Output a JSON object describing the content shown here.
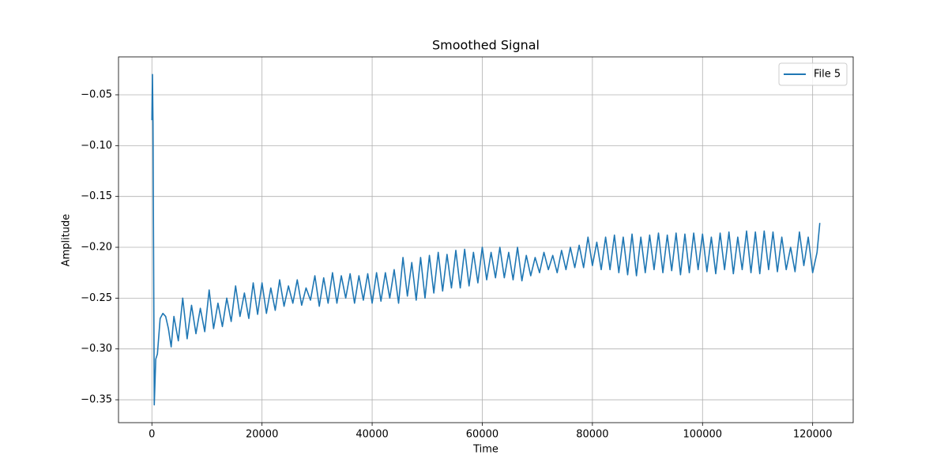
{
  "chart_data": {
    "type": "line",
    "title": "Smoothed Signal",
    "x_label": "Time",
    "y_label": "Amplitude",
    "xlim": [
      -6065,
      127365
    ],
    "ylim": [
      -0.3725,
      -0.0127
    ],
    "xticks": [
      0,
      20000,
      40000,
      60000,
      80000,
      100000,
      120000
    ],
    "yticks": [
      {
        "value": -0.35,
        "label": "−0.35"
      },
      {
        "value": -0.3,
        "label": "−0.30"
      },
      {
        "value": -0.25,
        "label": "−0.25"
      },
      {
        "value": -0.2,
        "label": "−0.20"
      },
      {
        "value": -0.15,
        "label": "−0.15"
      },
      {
        "value": -0.1,
        "label": "−0.10"
      },
      {
        "value": -0.05,
        "label": "−0.05"
      }
    ],
    "grid": true,
    "legend": "upper right",
    "x": [
      0,
      100,
      200,
      430,
      700,
      1000,
      1500,
      2000,
      2500,
      3000,
      3500,
      4000,
      4800,
      5600,
      6400,
      7200,
      8000,
      8800,
      9600,
      10400,
      11200,
      12000,
      12800,
      13600,
      14400,
      15200,
      16000,
      16800,
      17600,
      18400,
      19200,
      20000,
      20800,
      21600,
      22400,
      23200,
      24000,
      24800,
      25600,
      26400,
      27200,
      28000,
      28800,
      29600,
      30400,
      31200,
      32000,
      32800,
      33600,
      34400,
      35200,
      36000,
      36800,
      37600,
      38400,
      39200,
      40000,
      40800,
      41600,
      42400,
      43200,
      44000,
      44800,
      45600,
      46400,
      47200,
      48000,
      48800,
      49600,
      50400,
      51200,
      52000,
      52800,
      53600,
      54400,
      55200,
      56000,
      56800,
      57600,
      58400,
      59200,
      60000,
      60800,
      61600,
      62400,
      63200,
      64000,
      64800,
      65600,
      66400,
      67200,
      68000,
      68800,
      69600,
      70400,
      71200,
      72000,
      72800,
      73600,
      74400,
      75200,
      76000,
      76800,
      77600,
      78400,
      79200,
      80000,
      80800,
      81600,
      82400,
      83200,
      84000,
      84800,
      85600,
      86400,
      87200,
      88000,
      88800,
      89600,
      90400,
      91200,
      92000,
      92800,
      93600,
      94400,
      95200,
      96000,
      96800,
      97600,
      98400,
      99200,
      100000,
      100800,
      101600,
      102400,
      103200,
      104000,
      104800,
      105600,
      106400,
      107200,
      108000,
      108800,
      109600,
      110400,
      111200,
      112000,
      112800,
      113600,
      114400,
      115200,
      116000,
      116800,
      117600,
      118400,
      119200,
      120000,
      120800,
      121300
    ],
    "series": [
      {
        "name": "File 5",
        "color": "#1f77b4",
        "values": [
          -0.075,
          -0.03,
          -0.078,
          -0.355,
          -0.31,
          -0.305,
          -0.27,
          -0.265,
          -0.268,
          -0.28,
          -0.298,
          -0.268,
          -0.292,
          -0.25,
          -0.29,
          -0.257,
          -0.285,
          -0.26,
          -0.283,
          -0.242,
          -0.28,
          -0.255,
          -0.278,
          -0.25,
          -0.273,
          -0.238,
          -0.268,
          -0.245,
          -0.27,
          -0.235,
          -0.266,
          -0.235,
          -0.265,
          -0.24,
          -0.262,
          -0.232,
          -0.258,
          -0.238,
          -0.255,
          -0.232,
          -0.257,
          -0.24,
          -0.252,
          -0.228,
          -0.258,
          -0.23,
          -0.255,
          -0.225,
          -0.255,
          -0.228,
          -0.25,
          -0.226,
          -0.255,
          -0.228,
          -0.252,
          -0.226,
          -0.255,
          -0.225,
          -0.253,
          -0.225,
          -0.25,
          -0.222,
          -0.255,
          -0.21,
          -0.248,
          -0.215,
          -0.252,
          -0.21,
          -0.25,
          -0.208,
          -0.245,
          -0.205,
          -0.243,
          -0.207,
          -0.24,
          -0.203,
          -0.24,
          -0.202,
          -0.238,
          -0.205,
          -0.235,
          -0.2,
          -0.232,
          -0.205,
          -0.23,
          -0.2,
          -0.23,
          -0.205,
          -0.232,
          -0.2,
          -0.233,
          -0.208,
          -0.228,
          -0.21,
          -0.225,
          -0.205,
          -0.222,
          -0.208,
          -0.225,
          -0.203,
          -0.222,
          -0.2,
          -0.22,
          -0.198,
          -0.22,
          -0.19,
          -0.218,
          -0.195,
          -0.222,
          -0.19,
          -0.222,
          -0.188,
          -0.225,
          -0.19,
          -0.227,
          -0.187,
          -0.228,
          -0.19,
          -0.225,
          -0.188,
          -0.222,
          -0.186,
          -0.225,
          -0.188,
          -0.223,
          -0.186,
          -0.227,
          -0.187,
          -0.225,
          -0.186,
          -0.222,
          -0.187,
          -0.224,
          -0.19,
          -0.226,
          -0.186,
          -0.222,
          -0.185,
          -0.226,
          -0.19,
          -0.222,
          -0.184,
          -0.225,
          -0.185,
          -0.226,
          -0.184,
          -0.222,
          -0.185,
          -0.224,
          -0.19,
          -0.222,
          -0.2,
          -0.224,
          -0.185,
          -0.218,
          -0.19,
          -0.225,
          -0.205,
          -0.176
        ]
      }
    ]
  }
}
